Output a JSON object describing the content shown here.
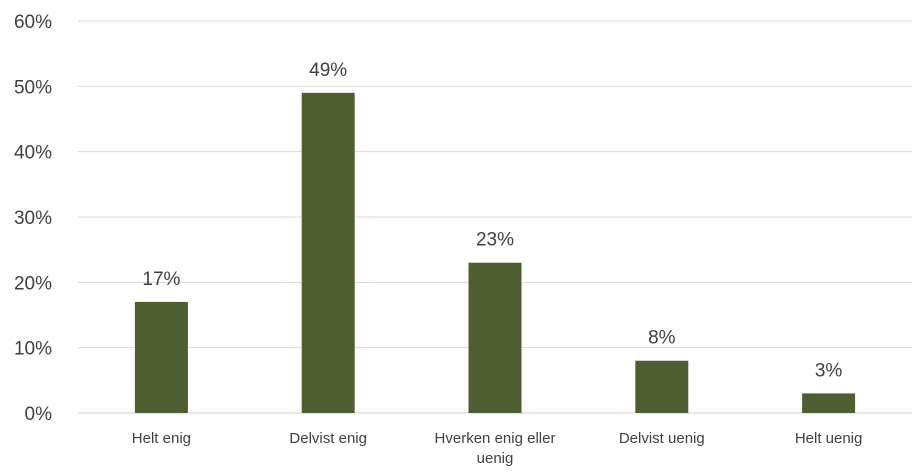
{
  "chart_data": {
    "type": "bar",
    "categories": [
      [
        "Helt enig"
      ],
      [
        "Delvist enig"
      ],
      [
        "Hverken enig eller",
        "uenig"
      ],
      [
        "Delvist uenig"
      ],
      [
        "Helt uenig"
      ]
    ],
    "values": [
      17,
      49,
      23,
      8,
      3
    ],
    "data_labels": [
      "17%",
      "49%",
      "23%",
      "8%",
      "3%"
    ],
    "y_ticks": [
      0,
      10,
      20,
      30,
      40,
      50,
      60
    ],
    "y_tick_labels": [
      "0%",
      "10%",
      "20%",
      "30%",
      "40%",
      "50%",
      "60%"
    ],
    "ylim": [
      0,
      60
    ],
    "title": "",
    "xlabel": "",
    "ylabel": "",
    "grid": true,
    "legend": "none",
    "bar_color": "#4e5e31"
  }
}
